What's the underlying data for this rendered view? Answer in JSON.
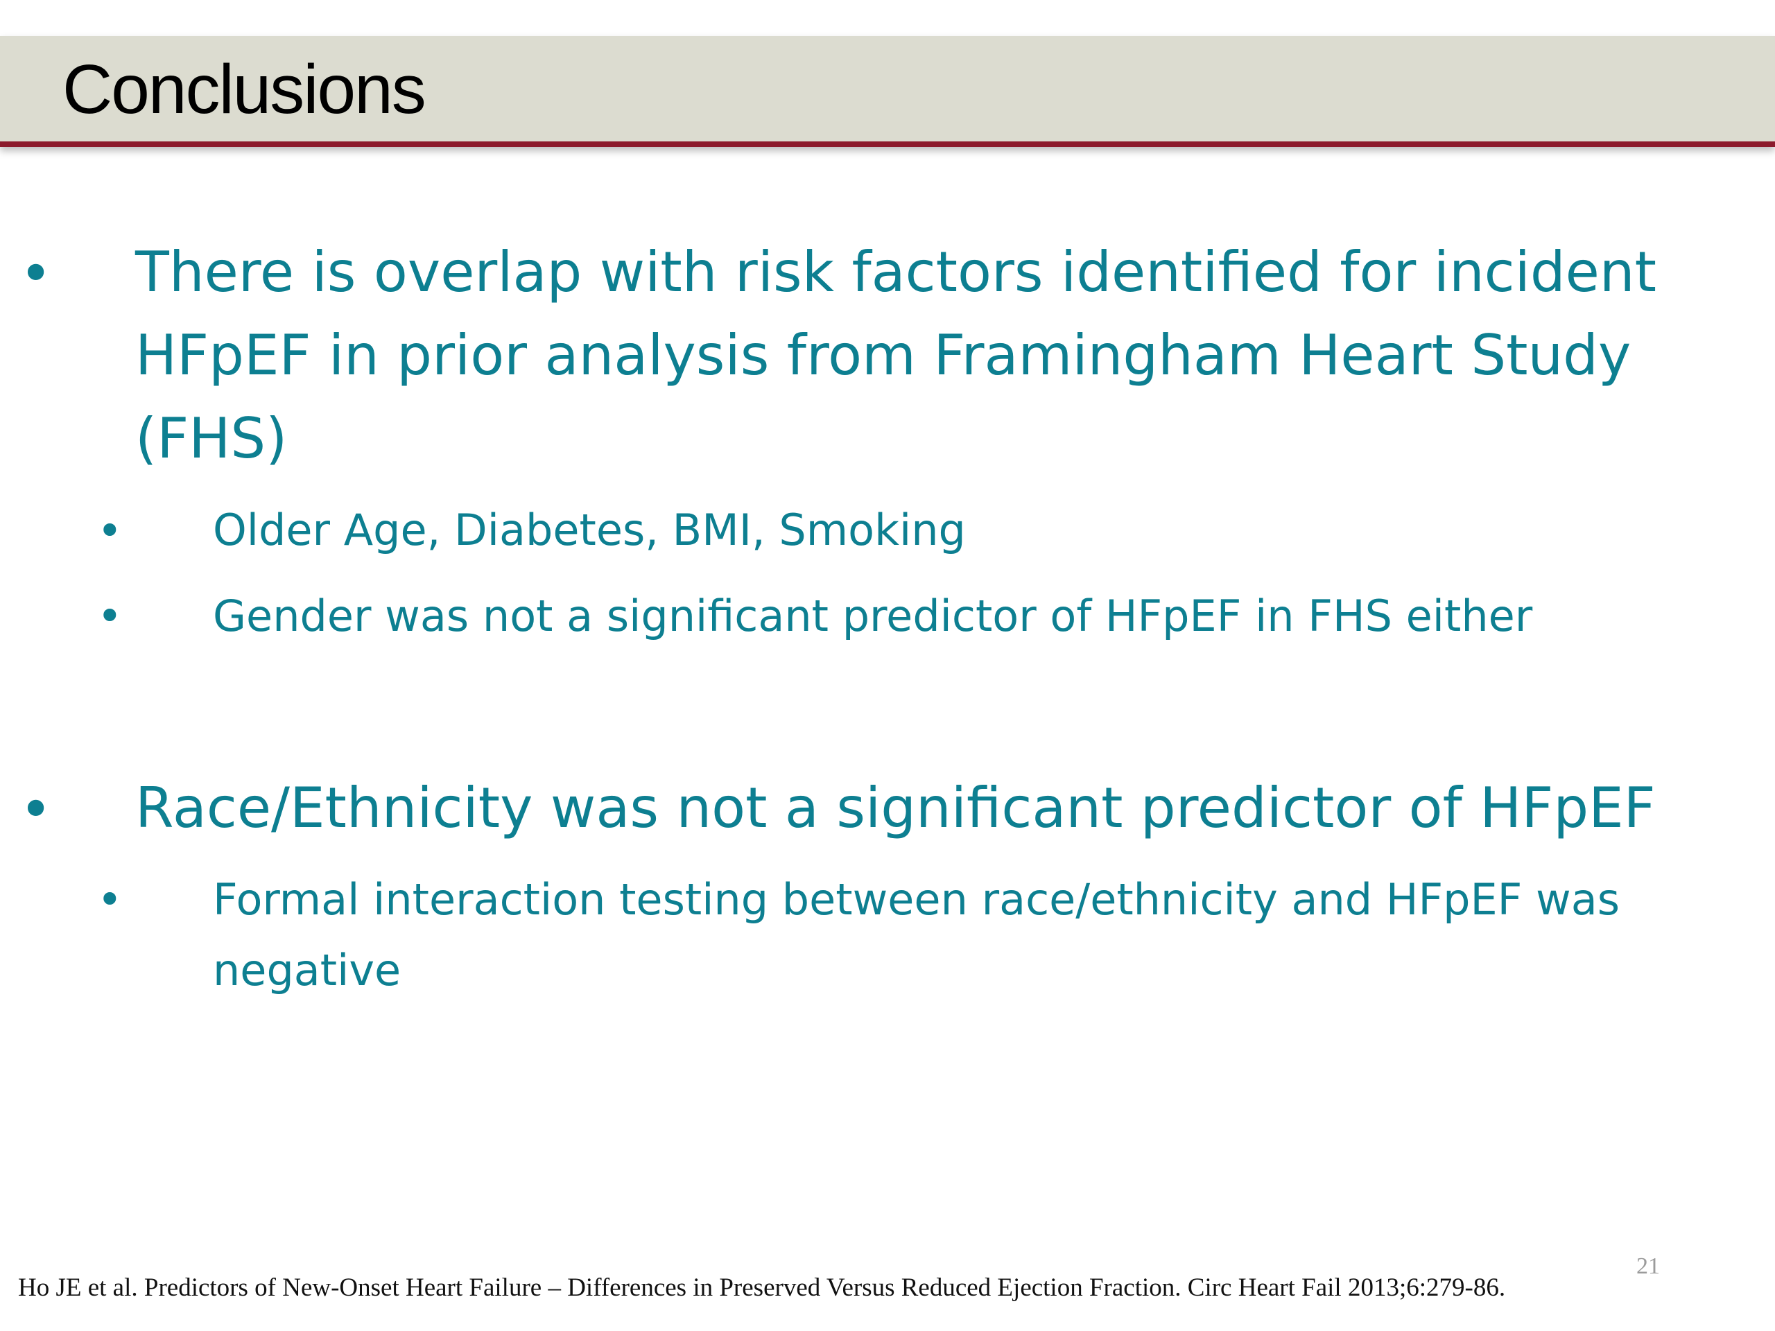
{
  "slide": {
    "title": "Conclusions",
    "bullets": [
      {
        "text": "There is overlap with risk factors identified for incident HFpEF in prior analysis from Framingham Heart Study (FHS)",
        "sub_bullets": [
          "Older Age, Diabetes, BMI, Smoking",
          "Gender was not a significant predictor of HFpEF in FHS either"
        ]
      },
      {
        "text": "Race/Ethnicity was not a significant predictor of HFpEF",
        "sub_bullets": [
          "Formal interaction testing between race/ethnicity and HFpEF was negative"
        ]
      }
    ],
    "bullet_symbol": "•",
    "page_number": "21",
    "citation": "Ho JE et al. Predictors of New-Onset Heart Failure – Differences in Preserved Versus Reduced Ejection Fraction. Circ Heart Fail 2013;6:279-86."
  },
  "colors": {
    "title_bar_background": "#dcdcd0",
    "title_bar_rule": "#8c1a2c",
    "body_text": "#0d7f91",
    "title_text": "#000000"
  }
}
